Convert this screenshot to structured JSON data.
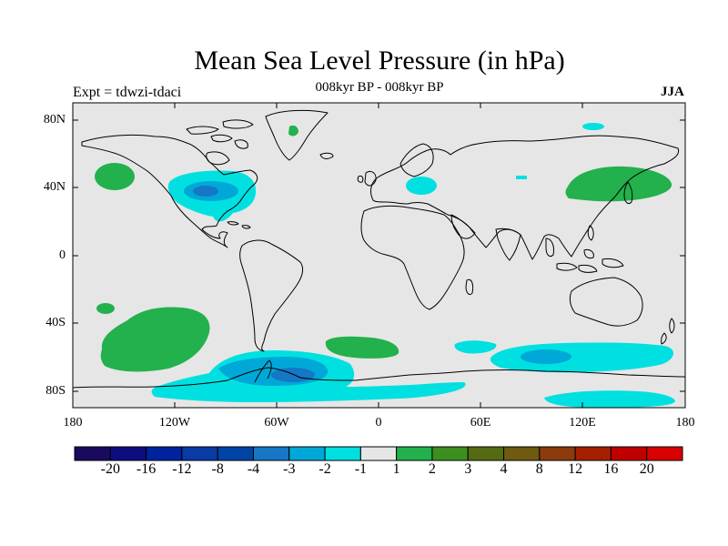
{
  "title": "Mean Sea Level Pressure (in hPa)",
  "subtitle": "008kyr BP - 008kyr BP",
  "left_label": "Expt = tdwzi-tdaci",
  "season": "JJA",
  "map": {
    "projection": "cylindrical-equidistant",
    "lon_range": [
      -180,
      180
    ],
    "lat_range": [
      -90,
      90
    ],
    "background_color": "#e6e6e6",
    "coastline_color": "#000000",
    "lat_ticks": [
      "80N",
      "40N",
      "0",
      "40S",
      "80S"
    ],
    "lon_ticks": [
      "180",
      "120W",
      "60W",
      "0",
      "60E",
      "120E",
      "180"
    ]
  },
  "colorbar": {
    "labels": [
      "-20",
      "-16",
      "-12",
      "-8",
      "-4",
      "-3",
      "-2",
      "-1",
      "1",
      "2",
      "3",
      "4",
      "8",
      "12",
      "16",
      "20"
    ],
    "colors": [
      "#1a0a5e",
      "#0d0d80",
      "#00229c",
      "#0a3aa6",
      "#0044a5",
      "#1577c5",
      "#00a8d8",
      "#00e0e0",
      "#e6e6e6",
      "#22b14c",
      "#3c8f1e",
      "#546b14",
      "#6e5a10",
      "#8c3b0c",
      "#a52000",
      "#c00000",
      "#d80000"
    ]
  },
  "anomaly_regions": [
    {
      "id": "n-pacific-high",
      "color": "#22b14c"
    },
    {
      "id": "n-america-low",
      "color": "#00e0e0"
    },
    {
      "id": "n-america-low-core",
      "color": "#00a8d8"
    },
    {
      "id": "n-america-low-center",
      "color": "#1577c5"
    },
    {
      "id": "greenland-green",
      "color": "#22b14c"
    },
    {
      "id": "arctic-cyan",
      "color": "#00e0e0"
    },
    {
      "id": "europe-low",
      "color": "#00e0e0"
    },
    {
      "id": "siberia-small",
      "color": "#00e0e0"
    },
    {
      "id": "east-asia-high",
      "color": "#22b14c"
    },
    {
      "id": "s-pacific-small-high",
      "color": "#22b14c"
    },
    {
      "id": "s-pacific-high",
      "color": "#22b14c"
    },
    {
      "id": "s-atlantic-high",
      "color": "#22b14c"
    },
    {
      "id": "southern-ocean-low",
      "color": "#00e0e0"
    },
    {
      "id": "southern-ocean-low-core",
      "color": "#00a8d8"
    },
    {
      "id": "southern-ocean-low-center",
      "color": "#1577c5"
    },
    {
      "id": "indian-ocean-low",
      "color": "#00e0e0"
    },
    {
      "id": "indian-ocean-low-core",
      "color": "#00a8d8"
    },
    {
      "id": "antarctic-coast-low",
      "color": "#00e0e0"
    }
  ]
}
